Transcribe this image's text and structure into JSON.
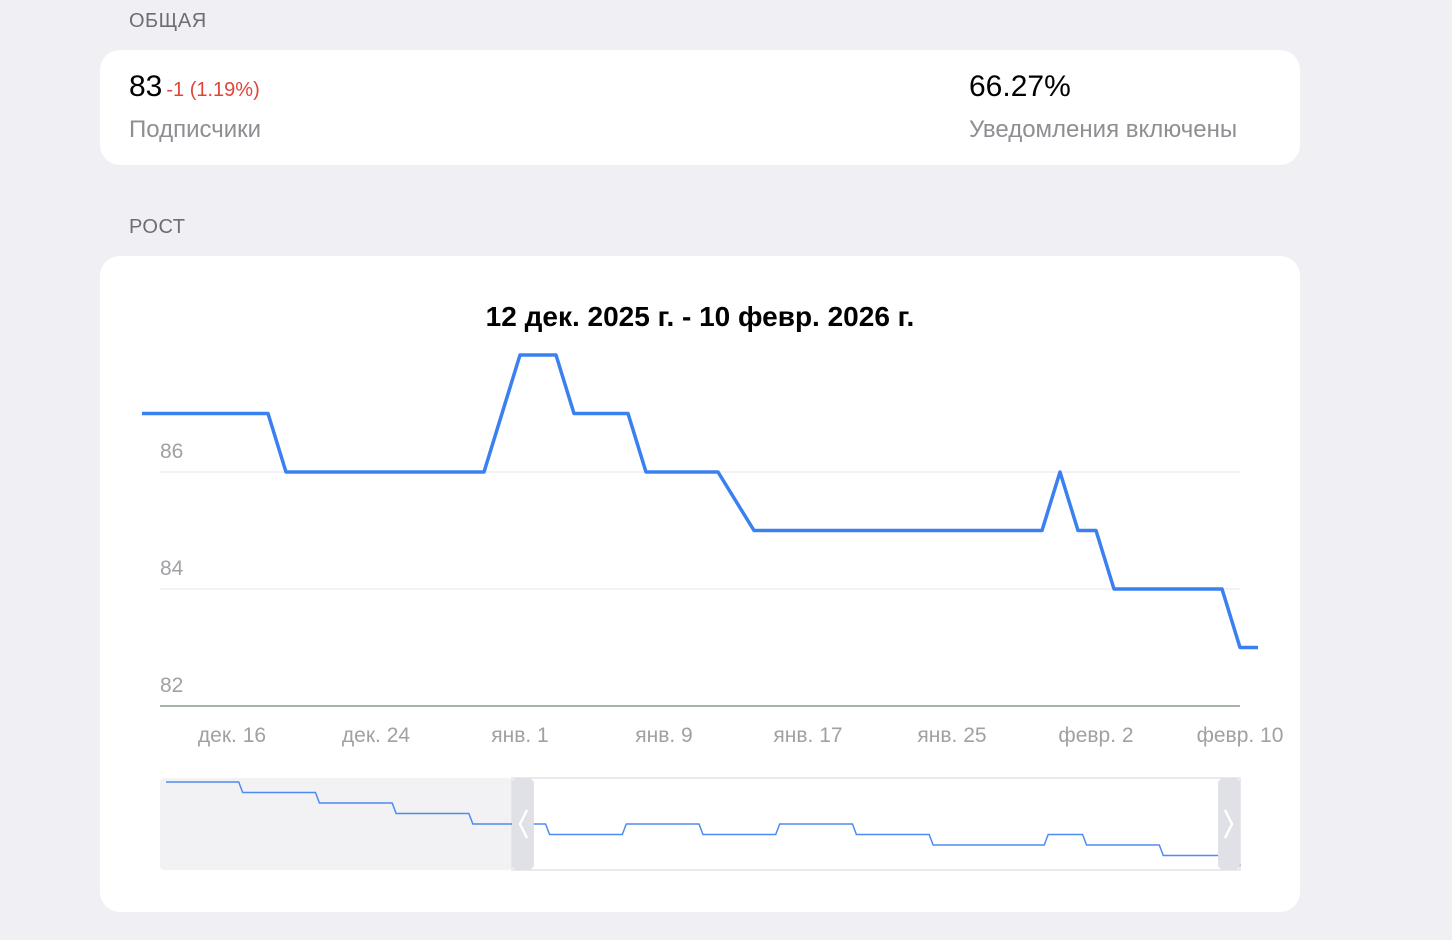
{
  "sections": {
    "general_title": "ОБЩАЯ",
    "growth_title": "РОСТ"
  },
  "stats": {
    "subscribers_value": "83",
    "subscribers_delta": "-1 (1.19%)",
    "subscribers_label": "Подписчики",
    "notifications_value": "66.27%",
    "notifications_label": "Уведомления включены"
  },
  "colors": {
    "line": "#3a80f0",
    "delta_negative": "#e0453a"
  },
  "chart_data": {
    "type": "line",
    "title": "12 дек. 2025 г. - 10 февр. 2026 г.",
    "x_start": "2025-12-12",
    "x_end": "2026-02-10",
    "x_tick_labels": [
      "дек. 16",
      "дек. 24",
      "янв. 1",
      "янв. 9",
      "янв. 17",
      "янв. 25",
      "февр. 2",
      "февр. 10"
    ],
    "y_tick_labels": [
      "82",
      "84",
      "86"
    ],
    "ylim": [
      82,
      88.4
    ],
    "grid": true,
    "series": [
      {
        "x": [
          "2025-12-11",
          "2025-12-18",
          "2025-12-19",
          "2025-12-30",
          "2026-01-01",
          "2026-01-03",
          "2026-01-04",
          "2026-01-07",
          "2026-01-08",
          "2026-01-12",
          "2026-01-14",
          "2026-01-30",
          "2026-01-31",
          "2026-02-01",
          "2026-02-02",
          "2026-02-03",
          "2026-02-09",
          "2026-02-10",
          "2026-02-11"
        ],
        "values": [
          87,
          87,
          86,
          86,
          88,
          88,
          87,
          87,
          86,
          86,
          85,
          85,
          86,
          85,
          85,
          84,
          84,
          83,
          83
        ]
      }
    ],
    "navigator": {
      "series": [
        {
          "values": [
            90,
            90,
            89,
            89,
            88,
            88,
            87,
            87,
            86,
            86,
            85,
            85,
            86,
            86,
            85,
            85,
            86,
            86,
            85,
            85,
            84,
            84,
            84,
            85,
            84,
            84,
            83,
            83,
            82
          ]
        }
      ]
    }
  }
}
